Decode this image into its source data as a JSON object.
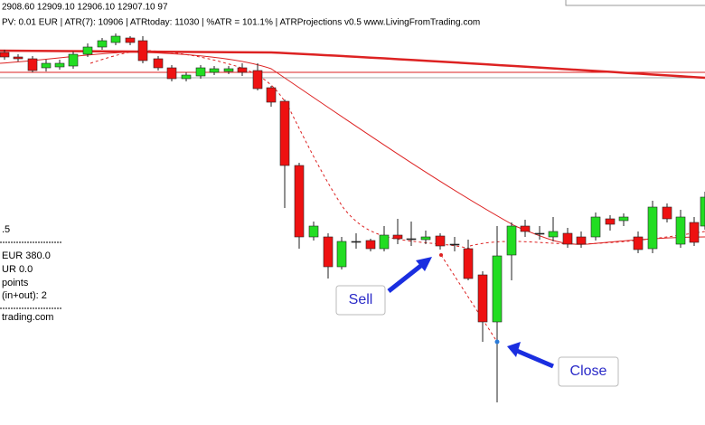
{
  "header": {
    "prices": "2908.60 12909.10 12906.10 12907.10  97",
    "indicator": "PV: 0.01 EUR | ATR(7): 10906 | ATRtoday: 11030 | %ATR = 101.1% | ATRProjections v0.5 www.LivingFromTrading.com"
  },
  "panel": {
    "lines": [
      ".5",
      "EUR 380.0",
      "UR 0.0",
      "points",
      "(in+out): 2",
      "trading.com"
    ]
  },
  "labels": {
    "sell": "Sell",
    "close": "Close"
  }
}
